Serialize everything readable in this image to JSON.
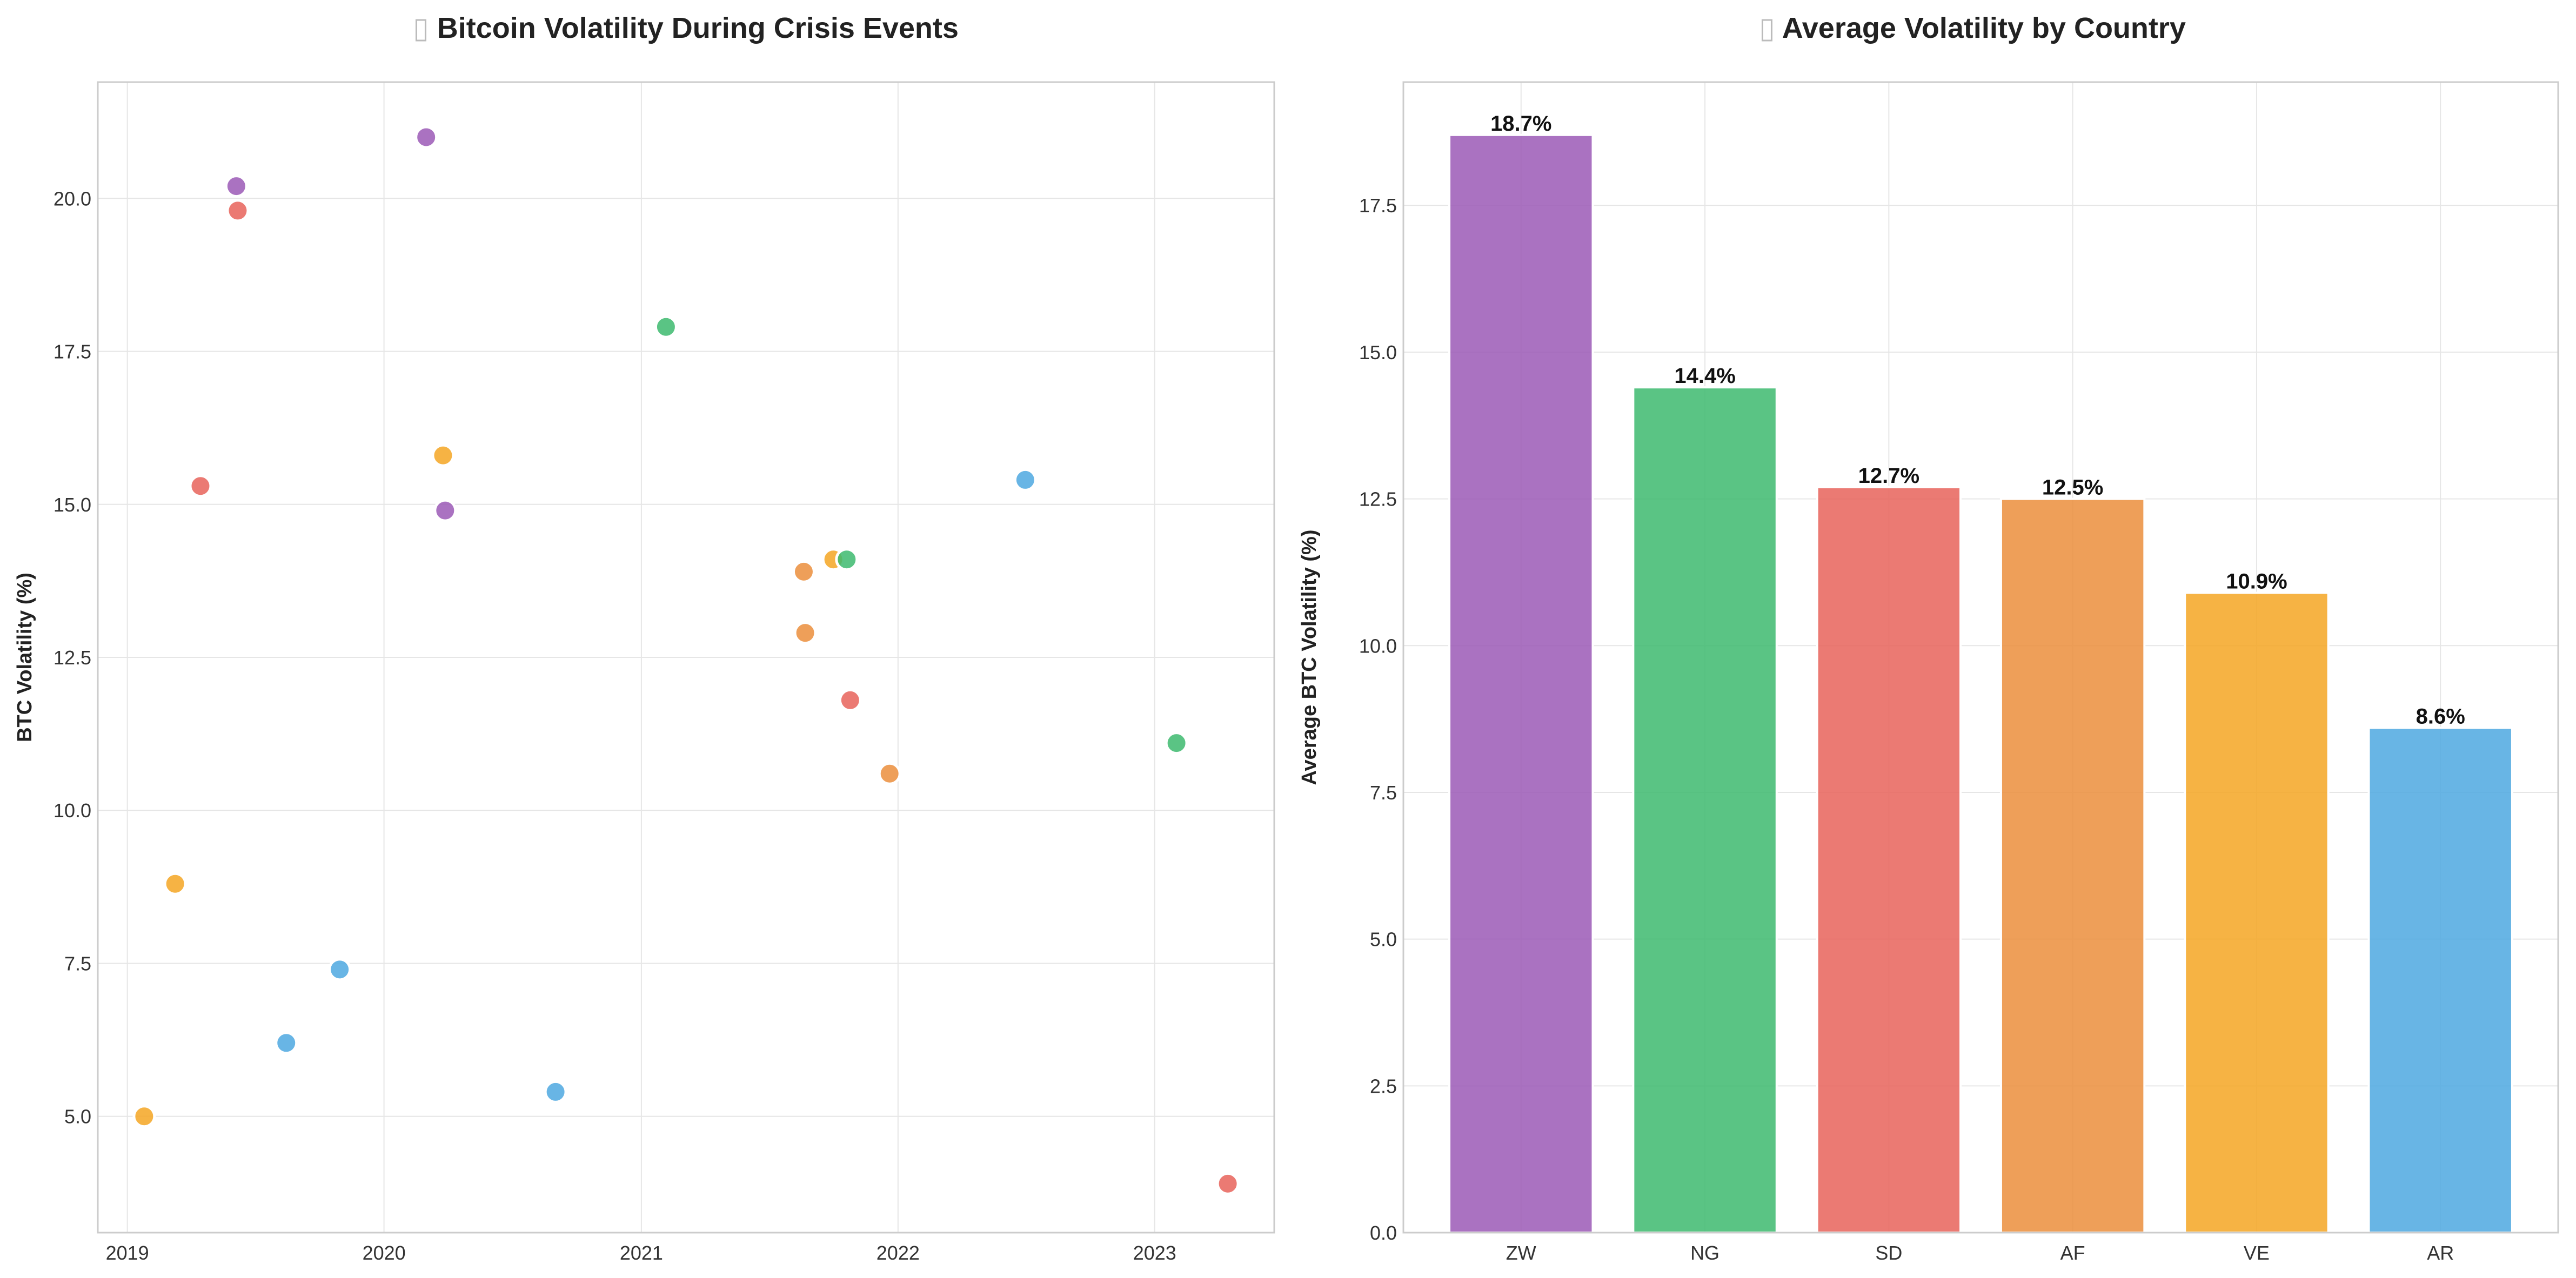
{
  "chart_data": [
    {
      "type": "scatter",
      "title": "Bitcoin Volatility During Crisis Events",
      "title_icon": "chart-icon",
      "xlabel": "",
      "ylabel": "BTC Volatility (%)",
      "x_ticks": [
        "2019",
        "2020",
        "2021",
        "2022",
        "2023"
      ],
      "y_ticks": [
        "5.0",
        "7.5",
        "10.0",
        "12.5",
        "15.0",
        "17.5",
        "20.0"
      ],
      "xlim": [
        "2018-11-20",
        "2023-06-20"
      ],
      "ylim": [
        3.1,
        21.9
      ],
      "grid": true,
      "points": [
        {
          "x": "2019-01-25",
          "y": 5.0,
          "color": "#f5a623"
        },
        {
          "x": "2019-03-10",
          "y": 8.8,
          "color": "#f5a623"
        },
        {
          "x": "2019-04-15",
          "y": 15.3,
          "color": "#e8635a"
        },
        {
          "x": "2019-06-05",
          "y": 20.2,
          "color": "#9b59b6"
        },
        {
          "x": "2019-06-07",
          "y": 19.8,
          "color": "#e8635a"
        },
        {
          "x": "2019-08-15",
          "y": 6.2,
          "color": "#4ea8e0"
        },
        {
          "x": "2019-10-30",
          "y": 7.4,
          "color": "#4ea8e0"
        },
        {
          "x": "2020-03-01",
          "y": 21.0,
          "color": "#9b59b6"
        },
        {
          "x": "2020-03-25",
          "y": 15.8,
          "color": "#f5a623"
        },
        {
          "x": "2020-03-28",
          "y": 14.9,
          "color": "#9b59b6"
        },
        {
          "x": "2020-09-01",
          "y": 5.4,
          "color": "#4ea8e0"
        },
        {
          "x": "2021-02-05",
          "y": 17.9,
          "color": "#3dba6f"
        },
        {
          "x": "2021-08-20",
          "y": 13.9,
          "color": "#eb8e3c"
        },
        {
          "x": "2021-08-22",
          "y": 12.9,
          "color": "#eb8e3c"
        },
        {
          "x": "2021-10-01",
          "y": 14.1,
          "color": "#f5a623"
        },
        {
          "x": "2021-10-20",
          "y": 14.1,
          "color": "#3dba6f"
        },
        {
          "x": "2021-10-25",
          "y": 11.8,
          "color": "#e8635a"
        },
        {
          "x": "2021-12-20",
          "y": 10.6,
          "color": "#eb8e3c"
        },
        {
          "x": "2022-07-01",
          "y": 15.4,
          "color": "#4ea8e0"
        },
        {
          "x": "2023-02-01",
          "y": 11.1,
          "color": "#3dba6f"
        },
        {
          "x": "2023-04-15",
          "y": 3.9,
          "color": "#e8635a"
        }
      ]
    },
    {
      "type": "bar",
      "title": "Average Volatility by Country",
      "title_icon": "globe-icon",
      "xlabel": "",
      "ylabel": "Average BTC Volatility (%)",
      "categories": [
        "ZW",
        "NG",
        "SD",
        "AF",
        "VE",
        "AR"
      ],
      "values": [
        18.7,
        14.4,
        12.7,
        12.5,
        10.9,
        8.6
      ],
      "data_labels": [
        "18.7%",
        "14.4%",
        "12.7%",
        "12.5%",
        "10.9%",
        "8.6%"
      ],
      "colors": [
        "#9b59b6",
        "#3dba6f",
        "#e8635a",
        "#eb8e3c",
        "#f5a623",
        "#4ea8e0"
      ],
      "y_ticks": [
        "0.0",
        "2.5",
        "5.0",
        "7.5",
        "10.0",
        "12.5",
        "15.0",
        "17.5"
      ],
      "ylim": [
        0,
        19.6
      ],
      "grid": true
    }
  ]
}
